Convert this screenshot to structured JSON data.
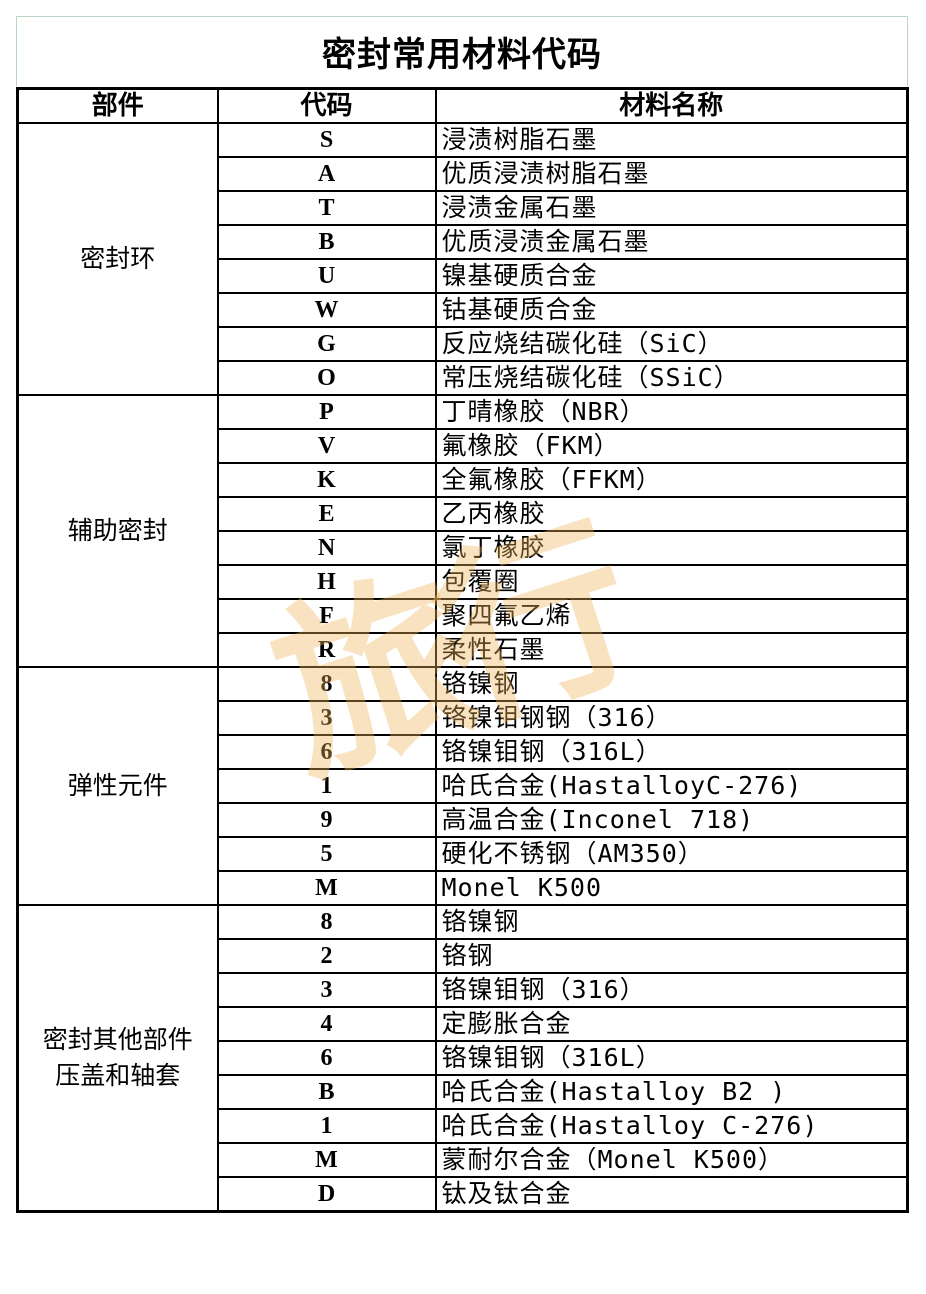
{
  "title": "密封常用材料代码",
  "headers": {
    "part": "部件",
    "code": "代码",
    "name": "材料名称"
  },
  "watermark": "旅行",
  "watermark_color": "#f0b45a",
  "sections": [
    {
      "part": [
        "密封环"
      ],
      "rows": [
        {
          "code": "S",
          "name": "浸渍树脂石墨"
        },
        {
          "code": "A",
          "name": "优质浸渍树脂石墨"
        },
        {
          "code": "T",
          "name": "浸渍金属石墨"
        },
        {
          "code": "B",
          "name": "优质浸渍金属石墨"
        },
        {
          "code": "U",
          "name": "镍基硬质合金"
        },
        {
          "code": "W",
          "name": "钴基硬质合金"
        },
        {
          "code": "G",
          "name": "反应烧结碳化硅（SiC）"
        },
        {
          "code": "O",
          "name": "常压烧结碳化硅（SSiC）"
        }
      ]
    },
    {
      "part": [
        "辅助密封"
      ],
      "rows": [
        {
          "code": "P",
          "name": "丁晴橡胶（NBR）"
        },
        {
          "code": "V",
          "name": "氟橡胶（FKM）"
        },
        {
          "code": "K",
          "name": "全氟橡胶（FFKM）"
        },
        {
          "code": "E",
          "name": "乙丙橡胶"
        },
        {
          "code": "N",
          "name": "氯丁橡胶"
        },
        {
          "code": "H",
          "name": "包覆圈"
        },
        {
          "code": "F",
          "name": "聚四氟乙烯"
        },
        {
          "code": "R",
          "name": "柔性石墨"
        }
      ]
    },
    {
      "part": [
        "弹性元件"
      ],
      "rows": [
        {
          "code": "8",
          "name": "铬镍钢"
        },
        {
          "code": "3",
          "name": "铬镍钼钢钢（316）"
        },
        {
          "code": "6",
          "name": "铬镍钼钢（316L）"
        },
        {
          "code": "1",
          "name": "哈氏合金(HastalloyC-276)"
        },
        {
          "code": "9",
          "name": "高温合金(Inconel 718)"
        },
        {
          "code": "5",
          "name": "硬化不锈钢（AM350）"
        },
        {
          "code": "M",
          "name": "Monel K500"
        }
      ]
    },
    {
      "part": [
        "密封其他部件",
        "压盖和轴套"
      ],
      "rows": [
        {
          "code": "8",
          "name": "铬镍钢"
        },
        {
          "code": "2",
          "name": "铬钢"
        },
        {
          "code": "3",
          "name": "铬镍钼钢（316）"
        },
        {
          "code": "4",
          "name": "定膨胀合金"
        },
        {
          "code": "6",
          "name": "铬镍钼钢（316L）"
        },
        {
          "code": "B",
          "name": "哈氏合金(Hastalloy B2 )"
        },
        {
          "code": "1",
          "name": "哈氏合金(Hastalloy C-276)"
        },
        {
          "code": "M",
          "name": "蒙耐尔合金（Monel K500）"
        },
        {
          "code": "D",
          "name": "钛及钛合金"
        }
      ]
    }
  ]
}
